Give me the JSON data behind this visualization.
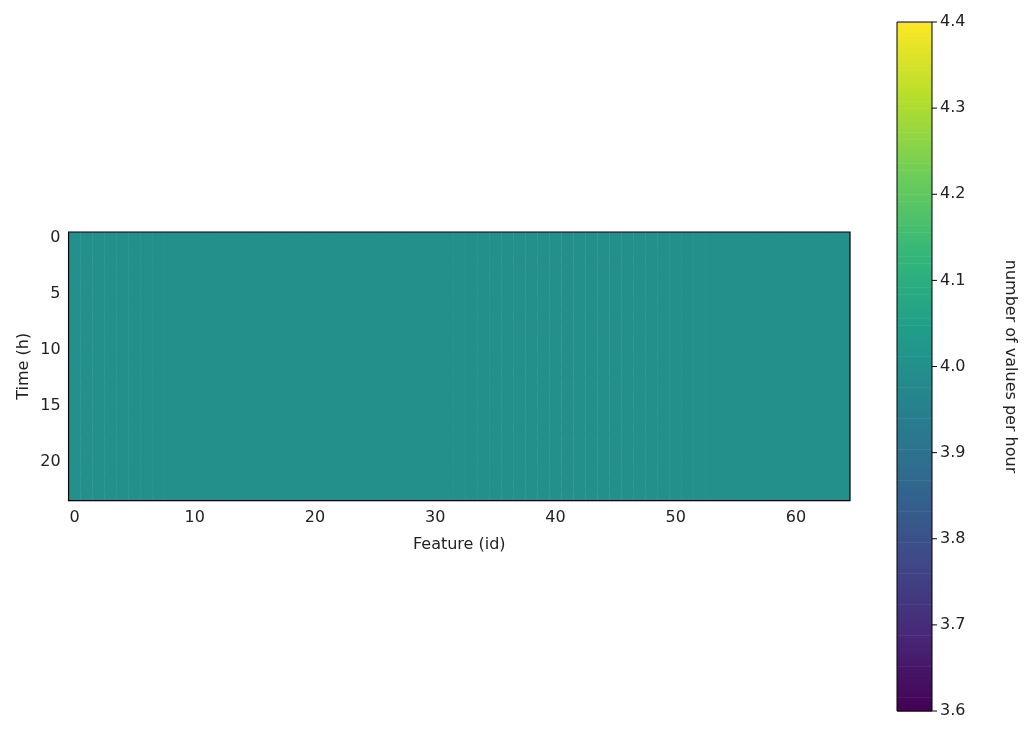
{
  "chart_data": {
    "type": "heatmap",
    "xlabel": "Feature (id)",
    "ylabel": "Time (h)",
    "clabel": "number of values per hour",
    "categories": [
      "0",
      null,
      null,
      null,
      null,
      null,
      null,
      null,
      null,
      null,
      "10",
      null,
      null,
      null,
      null,
      null,
      null,
      null,
      null,
      null,
      "20",
      null,
      null,
      null,
      null,
      null,
      null,
      null,
      null,
      null,
      "30",
      null,
      null,
      null,
      null,
      null,
      null,
      null,
      null,
      null,
      "40",
      null,
      null,
      null,
      null,
      null,
      null,
      null,
      null,
      null,
      "50",
      null,
      null,
      null,
      null,
      null,
      null,
      null,
      null,
      null,
      "60",
      null,
      null,
      null,
      null
    ],
    "y_categories": [
      "0",
      null,
      null,
      null,
      null,
      "5",
      null,
      null,
      null,
      null,
      "10",
      null,
      null,
      null,
      null,
      "15",
      null,
      null,
      null,
      null,
      "20",
      null,
      null,
      null
    ],
    "cells": [
      [
        4,
        4,
        4,
        4,
        4,
        4,
        4,
        4,
        4,
        4,
        4,
        4,
        4,
        4,
        4,
        4,
        4,
        4,
        4,
        4,
        4,
        4,
        4,
        4,
        4,
        4,
        4,
        4,
        4,
        4,
        4,
        4,
        4,
        4,
        4,
        4,
        4,
        4,
        4,
        4,
        4,
        4,
        4,
        4,
        4,
        4,
        4,
        4,
        4,
        4,
        4,
        4,
        4,
        4,
        4,
        4,
        4,
        4,
        4,
        4,
        4,
        4,
        4,
        4,
        4
      ],
      [
        4,
        4,
        4,
        4,
        4,
        4,
        4,
        4,
        4,
        4,
        4,
        4,
        4,
        4,
        4,
        4,
        4,
        4,
        4,
        4,
        4,
        4,
        4,
        4,
        4,
        4,
        4,
        4,
        4,
        4,
        4,
        4,
        4,
        4,
        4,
        4,
        4,
        4,
        4,
        4,
        4,
        4,
        4,
        4,
        4,
        4,
        4,
        4,
        4,
        4,
        4,
        4,
        4,
        4,
        4,
        4,
        4,
        4,
        4,
        4,
        4,
        4,
        4,
        4,
        4
      ],
      [
        4,
        4,
        4,
        4,
        4,
        4,
        4,
        4,
        4,
        4,
        4,
        4,
        4,
        4,
        4,
        4,
        4,
        4,
        4,
        4,
        4,
        4,
        4,
        4,
        4,
        4,
        4,
        4,
        4,
        4,
        4,
        4,
        4,
        4,
        4,
        4,
        4,
        4,
        4,
        4,
        4,
        4,
        4,
        4,
        4,
        4,
        4,
        4,
        4,
        4,
        4,
        4,
        4,
        4,
        4,
        4,
        4,
        4,
        4,
        4,
        4,
        4,
        4,
        4,
        4
      ],
      [
        4,
        4,
        4,
        4,
        4,
        4,
        4,
        4,
        4,
        4,
        4,
        4,
        4,
        4,
        4,
        4,
        4,
        4,
        4,
        4,
        4,
        4,
        4,
        4,
        4,
        4,
        4,
        4,
        4,
        4,
        4,
        4,
        4,
        4,
        4,
        4,
        4,
        4,
        4,
        4,
        4,
        4,
        4,
        4,
        4,
        4,
        4,
        4,
        4,
        4,
        4,
        4,
        4,
        4,
        4,
        4,
        4,
        4,
        4,
        4,
        4,
        4,
        4,
        4,
        4
      ],
      [
        4,
        4,
        4,
        4,
        4,
        4,
        4,
        4,
        4,
        4,
        4,
        4,
        4,
        4,
        4,
        4,
        4,
        4,
        4,
        4,
        4,
        4,
        4,
        4,
        4,
        4,
        4,
        4,
        4,
        4,
        4,
        4,
        4,
        4,
        4,
        4,
        4,
        4,
        4,
        4,
        4,
        4,
        4,
        4,
        4,
        4,
        4,
        4,
        4,
        4,
        4,
        4,
        4,
        4,
        4,
        4,
        4,
        4,
        4,
        4,
        4,
        4,
        4,
        4,
        4
      ],
      [
        4,
        4,
        4,
        4,
        4,
        4,
        4,
        4,
        4,
        4,
        4,
        4,
        4,
        4,
        4,
        4,
        4,
        4,
        4,
        4,
        4,
        4,
        4,
        4,
        4,
        4,
        4,
        4,
        4,
        4,
        4,
        4,
        4,
        4,
        4,
        4,
        4,
        4,
        4,
        4,
        4,
        4,
        4,
        4,
        4,
        4,
        4,
        4,
        4,
        4,
        4,
        4,
        4,
        4,
        4,
        4,
        4,
        4,
        4,
        4,
        4,
        4,
        4,
        4,
        4
      ],
      [
        4,
        4,
        4,
        4,
        4,
        4,
        4,
        4,
        4,
        4,
        4,
        4,
        4,
        4,
        4,
        4,
        4,
        4,
        4,
        4,
        4,
        4,
        4,
        4,
        4,
        4,
        4,
        4,
        4,
        4,
        4,
        4,
        4,
        4,
        4,
        4,
        4,
        4,
        4,
        4,
        4,
        4,
        4,
        4,
        4,
        4,
        4,
        4,
        4,
        4,
        4,
        4,
        4,
        4,
        4,
        4,
        4,
        4,
        4,
        4,
        4,
        4,
        4,
        4,
        4
      ],
      [
        4,
        4,
        4,
        4,
        4,
        4,
        4,
        4,
        4,
        4,
        4,
        4,
        4,
        4,
        4,
        4,
        4,
        4,
        4,
        4,
        4,
        4,
        4,
        4,
        4,
        4,
        4,
        4,
        4,
        4,
        4,
        4,
        4,
        4,
        4,
        4,
        4,
        4,
        4,
        4,
        4,
        4,
        4,
        4,
        4,
        4,
        4,
        4,
        4,
        4,
        4,
        4,
        4,
        4,
        4,
        4,
        4,
        4,
        4,
        4,
        4,
        4,
        4,
        4,
        4
      ],
      [
        4,
        4,
        4,
        4,
        4,
        4,
        4,
        4,
        4,
        4,
        4,
        4,
        4,
        4,
        4,
        4,
        4,
        4,
        4,
        4,
        4,
        4,
        4,
        4,
        4,
        4,
        4,
        4,
        4,
        4,
        4,
        4,
        4,
        4,
        4,
        4,
        4,
        4,
        4,
        4,
        4,
        4,
        4,
        4,
        4,
        4,
        4,
        4,
        4,
        4,
        4,
        4,
        4,
        4,
        4,
        4,
        4,
        4,
        4,
        4,
        4,
        4,
        4,
        4,
        4
      ],
      [
        4,
        4,
        4,
        4,
        4,
        4,
        4,
        4,
        4,
        4,
        4,
        4,
        4,
        4,
        4,
        4,
        4,
        4,
        4,
        4,
        4,
        4,
        4,
        4,
        4,
        4,
        4,
        4,
        4,
        4,
        4,
        4,
        4,
        4,
        4,
        4,
        4,
        4,
        4,
        4,
        4,
        4,
        4,
        4,
        4,
        4,
        4,
        4,
        4,
        4,
        4,
        4,
        4,
        4,
        4,
        4,
        4,
        4,
        4,
        4,
        4,
        4,
        4,
        4,
        4
      ],
      [
        4,
        4,
        4,
        4,
        4,
        4,
        4,
        4,
        4,
        4,
        4,
        4,
        4,
        4,
        4,
        4,
        4,
        4,
        4,
        4,
        4,
        4,
        4,
        4,
        4,
        4,
        4,
        4,
        4,
        4,
        4,
        4,
        4,
        4,
        4,
        4,
        4,
        4,
        4,
        4,
        4,
        4,
        4,
        4,
        4,
        4,
        4,
        4,
        4,
        4,
        4,
        4,
        4,
        4,
        4,
        4,
        4,
        4,
        4,
        4,
        4,
        4,
        4,
        4,
        4
      ],
      [
        4,
        4,
        4,
        4,
        4,
        4,
        4,
        4,
        4,
        4,
        4,
        4,
        4,
        4,
        4,
        4,
        4,
        4,
        4,
        4,
        4,
        4,
        4,
        4,
        4,
        4,
        4,
        4,
        4,
        4,
        4,
        4,
        4,
        4,
        4,
        4,
        4,
        4,
        4,
        4,
        4,
        4,
        4,
        4,
        4,
        4,
        4,
        4,
        4,
        4,
        4,
        4,
        4,
        4,
        4,
        4,
        4,
        4,
        4,
        4,
        4,
        4,
        4,
        4,
        4
      ],
      [
        4,
        4,
        4,
        4,
        4,
        4,
        4,
        4,
        4,
        4,
        4,
        4,
        4,
        4,
        4,
        4,
        4,
        4,
        4,
        4,
        4,
        4,
        4,
        4,
        4,
        4,
        4,
        4,
        4,
        4,
        4,
        4,
        4,
        4,
        4,
        4,
        4,
        4,
        4,
        4,
        4,
        4,
        4,
        4,
        4,
        4,
        4,
        4,
        4,
        4,
        4,
        4,
        4,
        4,
        4,
        4,
        4,
        4,
        4,
        4,
        4,
        4,
        4,
        4,
        4
      ],
      [
        4,
        4,
        4,
        4,
        4,
        4,
        4,
        4,
        4,
        4,
        4,
        4,
        4,
        4,
        4,
        4,
        4,
        4,
        4,
        4,
        4,
        4,
        4,
        4,
        4,
        4,
        4,
        4,
        4,
        4,
        4,
        4,
        4,
        4,
        4,
        4,
        4,
        4,
        4,
        4,
        4,
        4,
        4,
        4,
        4,
        4,
        4,
        4,
        4,
        4,
        4,
        4,
        4,
        4,
        4,
        4,
        4,
        4,
        4,
        4,
        4,
        4,
        4,
        4,
        4
      ],
      [
        4,
        4,
        4,
        4,
        4,
        4,
        4,
        4,
        4,
        4,
        4,
        4,
        4,
        4,
        4,
        4,
        4,
        4,
        4,
        4,
        4,
        4,
        4,
        4,
        4,
        4,
        4,
        4,
        4,
        4,
        4,
        4,
        4,
        4,
        4,
        4,
        4,
        4,
        4,
        4,
        4,
        4,
        4,
        4,
        4,
        4,
        4,
        4,
        4,
        4,
        4,
        4,
        4,
        4,
        4,
        4,
        4,
        4,
        4,
        4,
        4,
        4,
        4,
        4,
        4
      ],
      [
        4,
        4,
        4,
        4,
        4,
        4,
        4,
        4,
        4,
        4,
        4,
        4,
        4,
        4,
        4,
        4,
        4,
        4,
        4,
        4,
        4,
        4,
        4,
        4,
        4,
        4,
        4,
        4,
        4,
        4,
        4,
        4,
        4,
        4,
        4,
        4,
        4,
        4,
        4,
        4,
        4,
        4,
        4,
        4,
        4,
        4,
        4,
        4,
        4,
        4,
        4,
        4,
        4,
        4,
        4,
        4,
        4,
        4,
        4,
        4,
        4,
        4,
        4,
        4,
        4
      ],
      [
        4,
        4,
        4,
        4,
        4,
        4,
        4,
        4,
        4,
        4,
        4,
        4,
        4,
        4,
        4,
        4,
        4,
        4,
        4,
        4,
        4,
        4,
        4,
        4,
        4,
        4,
        4,
        4,
        4,
        4,
        4,
        4,
        4,
        4,
        4,
        4,
        4,
        4,
        4,
        4,
        4,
        4,
        4,
        4,
        4,
        4,
        4,
        4,
        4,
        4,
        4,
        4,
        4,
        4,
        4,
        4,
        4,
        4,
        4,
        4,
        4,
        4,
        4,
        4,
        4
      ],
      [
        4,
        4,
        4,
        4,
        4,
        4,
        4,
        4,
        4,
        4,
        4,
        4,
        4,
        4,
        4,
        4,
        4,
        4,
        4,
        4,
        4,
        4,
        4,
        4,
        4,
        4,
        4,
        4,
        4,
        4,
        4,
        4,
        4,
        4,
        4,
        4,
        4,
        4,
        4,
        4,
        4,
        4,
        4,
        4,
        4,
        4,
        4,
        4,
        4,
        4,
        4,
        4,
        4,
        4,
        4,
        4,
        4,
        4,
        4,
        4,
        4,
        4,
        4,
        4,
        4
      ],
      [
        4,
        4,
        4,
        4,
        4,
        4,
        4,
        4,
        4,
        4,
        4,
        4,
        4,
        4,
        4,
        4,
        4,
        4,
        4,
        4,
        4,
        4,
        4,
        4,
        4,
        4,
        4,
        4,
        4,
        4,
        4,
        4,
        4,
        4,
        4,
        4,
        4,
        4,
        4,
        4,
        4,
        4,
        4,
        4,
        4,
        4,
        4,
        4,
        4,
        4,
        4,
        4,
        4,
        4,
        4,
        4,
        4,
        4,
        4,
        4,
        4,
        4,
        4,
        4,
        4
      ],
      [
        4,
        4,
        4,
        4,
        4,
        4,
        4,
        4,
        4,
        4,
        4,
        4,
        4,
        4,
        4,
        4,
        4,
        4,
        4,
        4,
        4,
        4,
        4,
        4,
        4,
        4,
        4,
        4,
        4,
        4,
        4,
        4,
        4,
        4,
        4,
        4,
        4,
        4,
        4,
        4,
        4,
        4,
        4,
        4,
        4,
        4,
        4,
        4,
        4,
        4,
        4,
        4,
        4,
        4,
        4,
        4,
        4,
        4,
        4,
        4,
        4,
        4,
        4,
        4,
        4
      ],
      [
        4,
        4,
        4,
        4,
        4,
        4,
        4,
        4,
        4,
        4,
        4,
        4,
        4,
        4,
        4,
        4,
        4,
        4,
        4,
        4,
        4,
        4,
        4,
        4,
        4,
        4,
        4,
        4,
        4,
        4,
        4,
        4,
        4,
        4,
        4,
        4,
        4,
        4,
        4,
        4,
        4,
        4,
        4,
        4,
        4,
        4,
        4,
        4,
        4,
        4,
        4,
        4,
        4,
        4,
        4,
        4,
        4,
        4,
        4,
        4,
        4,
        4,
        4,
        4,
        4
      ],
      [
        4,
        4,
        4,
        4,
        4,
        4,
        4,
        4,
        4,
        4,
        4,
        4,
        4,
        4,
        4,
        4,
        4,
        4,
        4,
        4,
        4,
        4,
        4,
        4,
        4,
        4,
        4,
        4,
        4,
        4,
        4,
        4,
        4,
        4,
        4,
        4,
        4,
        4,
        4,
        4,
        4,
        4,
        4,
        4,
        4,
        4,
        4,
        4,
        4,
        4,
        4,
        4,
        4,
        4,
        4,
        4,
        4,
        4,
        4,
        4,
        4,
        4,
        4,
        4,
        4
      ],
      [
        4,
        4,
        4,
        4,
        4,
        4,
        4,
        4,
        4,
        4,
        4,
        4,
        4,
        4,
        4,
        4,
        4,
        4,
        4,
        4,
        4,
        4,
        4,
        4,
        4,
        4,
        4,
        4,
        4,
        4,
        4,
        4,
        4,
        4,
        4,
        4,
        4,
        4,
        4,
        4,
        4,
        4,
        4,
        4,
        4,
        4,
        4,
        4,
        4,
        4,
        4,
        4,
        4,
        4,
        4,
        4,
        4,
        4,
        4,
        4,
        4,
        4,
        4,
        4,
        4
      ],
      [
        4,
        4,
        4,
        4,
        4,
        4,
        4,
        4,
        4,
        4,
        4,
        4,
        4,
        4,
        4,
        4,
        4,
        4,
        4,
        4,
        4,
        4,
        4,
        4,
        4,
        4,
        4,
        4,
        4,
        4,
        4,
        4,
        4,
        4,
        4,
        4,
        4,
        4,
        4,
        4,
        4,
        4,
        4,
        4,
        4,
        4,
        4,
        4,
        4,
        4,
        4,
        4,
        4,
        4,
        4,
        4,
        4,
        4,
        4,
        4,
        4,
        4,
        4,
        4,
        4
      ]
    ],
    "clim": [
      3.6,
      4.4
    ],
    "cticks": [
      3.6,
      3.7,
      3.8,
      3.9,
      {
        "value": 4,
        "label": "4.0"
      },
      4.1,
      4.2,
      4.3,
      4.4
    ]
  }
}
